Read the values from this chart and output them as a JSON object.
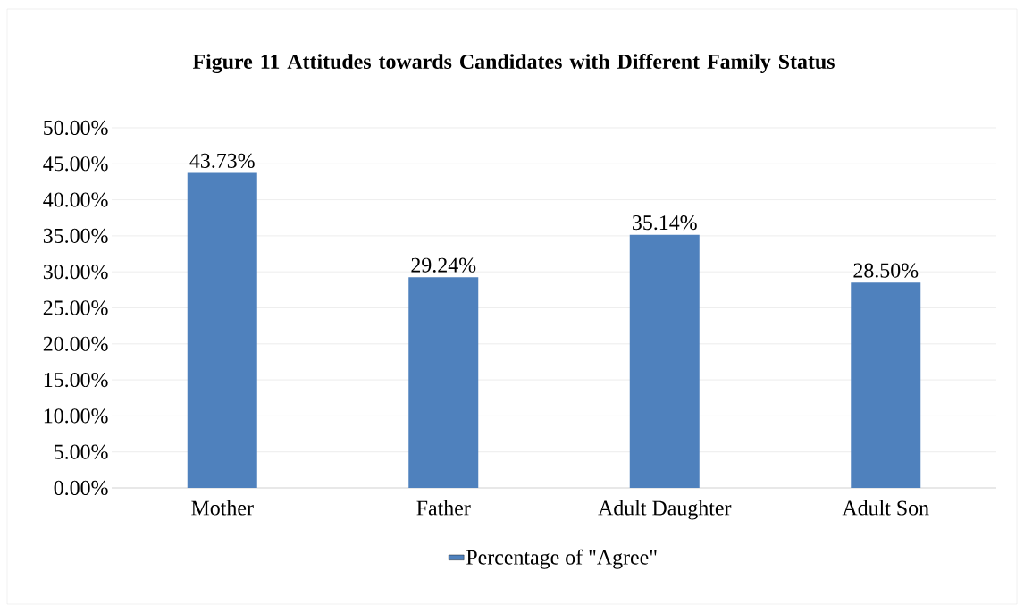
{
  "chart_data": {
    "type": "bar",
    "title": "Figure 11 Attitudes towards Candidates with Different Family Status",
    "categories": [
      "Mother",
      "Father",
      "Adult Daughter",
      "Adult Son"
    ],
    "series": [
      {
        "name": "Percentage of \"Agree\"",
        "color": "#4f81bd",
        "values": [
          43.73,
          29.24,
          35.14,
          28.5
        ],
        "value_labels": [
          "43.73%",
          "29.24%",
          "35.14%",
          "28.50%"
        ]
      }
    ],
    "ylim": [
      0,
      50
    ],
    "yticks": [
      {
        "value": 0,
        "label": "0.00%"
      },
      {
        "value": 5,
        "label": "5.00%"
      },
      {
        "value": 10,
        "label": "10.00%"
      },
      {
        "value": 15,
        "label": "15.00%"
      },
      {
        "value": 20,
        "label": "20.00%"
      },
      {
        "value": 25,
        "label": "25.00%"
      },
      {
        "value": 30,
        "label": "30.00%"
      },
      {
        "value": 35,
        "label": "35.00%"
      },
      {
        "value": 40,
        "label": "40.00%"
      },
      {
        "value": 45,
        "label": "45.00%"
      },
      {
        "value": 50,
        "label": "50.00%"
      }
    ],
    "grid": "y",
    "legend": "bottom"
  }
}
